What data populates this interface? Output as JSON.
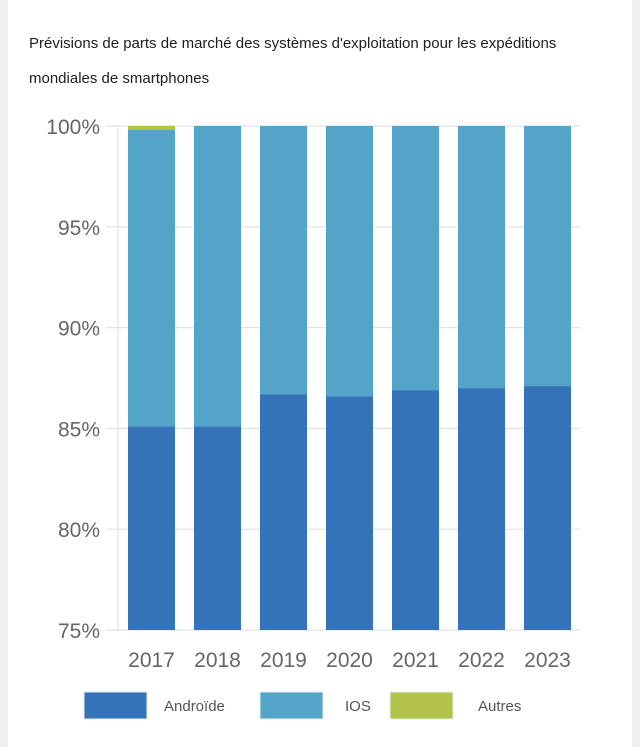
{
  "chart_data": {
    "type": "bar",
    "stacked": true,
    "title": "Prévisions de parts de marché des systèmes d'exploitation pour les expéditions mondiales de smartphones",
    "title_lines": [
      "Prévisions de parts de marché des systèmes d'exploitation pour les expéditions",
      "mondiales de smartphones"
    ],
    "xlabel": "",
    "ylabel": "",
    "ylim": [
      75,
      100
    ],
    "yticks": [
      75,
      80,
      85,
      90,
      95,
      100
    ],
    "ytick_labels": [
      "75%",
      "80%",
      "85%",
      "90%",
      "95%",
      "100%"
    ],
    "categories": [
      "2017",
      "2018",
      "2019",
      "2020",
      "2021",
      "2022",
      "2023"
    ],
    "grid": true,
    "legend_position": "bottom",
    "series": [
      {
        "name": "Androïde",
        "color": "#3573b9",
        "values": [
          85.1,
          85.1,
          86.7,
          86.6,
          86.9,
          87.0,
          87.1
        ]
      },
      {
        "name": "IOS",
        "color": "#53a4c8",
        "values": [
          14.7,
          14.9,
          13.3,
          13.4,
          13.1,
          13.0,
          12.9
        ]
      },
      {
        "name": "Autres",
        "color": "#b2c34a",
        "values": [
          0.2,
          0.0,
          0.0,
          0.0,
          0.0,
          0.0,
          0.0
        ]
      }
    ]
  }
}
